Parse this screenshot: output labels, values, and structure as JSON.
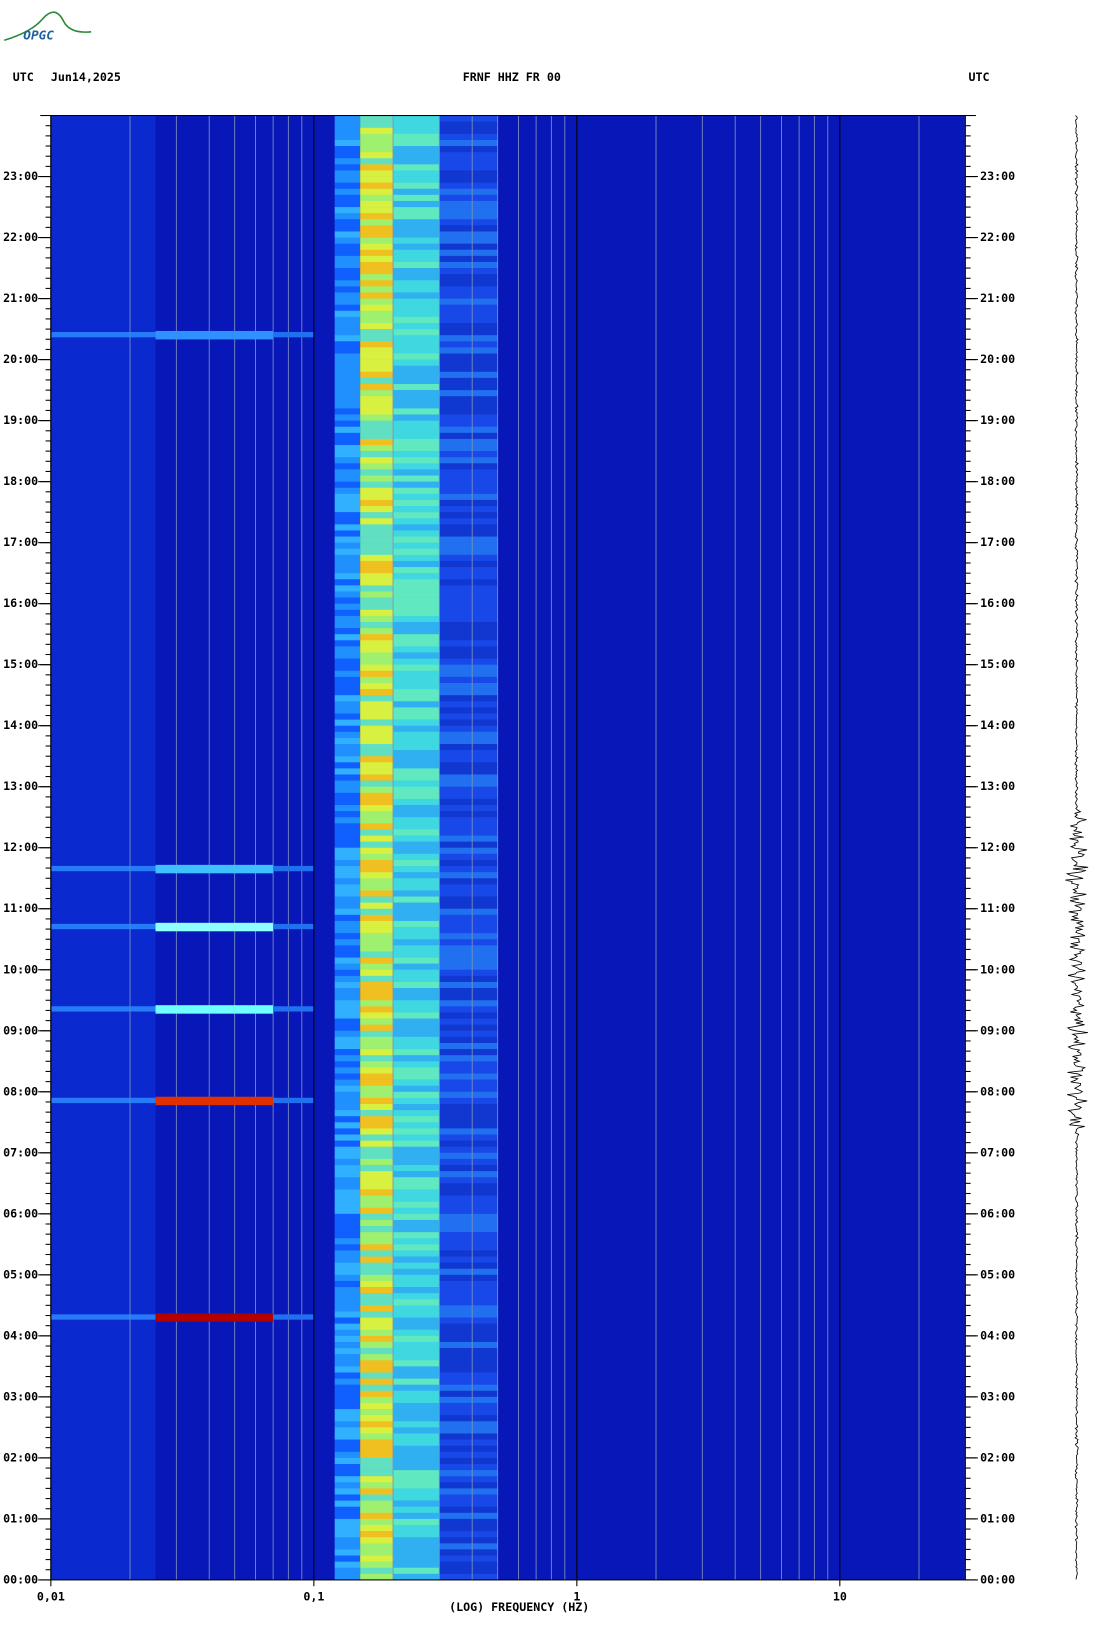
{
  "logo": "OPGC",
  "chart_data": {
    "type": "spectrogram",
    "header_left": "UTC",
    "date": "Jun14,2025",
    "title": "FRNF HHZ FR 00",
    "header_right": "UTC",
    "xlabel": "(LOG) FREQUENCY (HZ)",
    "xscale": "log",
    "xlim": [
      0.01,
      30
    ],
    "xticks": [
      {
        "value": 0.01,
        "label": "0,01"
      },
      {
        "value": 0.1,
        "label": "0,1"
      },
      1,
      10
    ],
    "ylim": [
      0,
      24
    ],
    "yticks": [
      {
        "value": 0,
        "label": "00:00"
      },
      {
        "value": 1,
        "label": "01:00"
      },
      {
        "value": 2,
        "label": "02:00"
      },
      {
        "value": 3,
        "label": "03:00"
      },
      {
        "value": 4,
        "label": "04:00"
      },
      {
        "value": 5,
        "label": "05:00"
      },
      {
        "value": 6,
        "label": "06:00"
      },
      {
        "value": 7,
        "label": "07:00"
      },
      {
        "value": 8,
        "label": "08:00"
      },
      {
        "value": 9,
        "label": "09:00"
      },
      {
        "value": 10,
        "label": "10:00"
      },
      {
        "value": 11,
        "label": "11:00"
      },
      {
        "value": 12,
        "label": "12:00"
      },
      {
        "value": 13,
        "label": "13:00"
      },
      {
        "value": 14,
        "label": "14:00"
      },
      {
        "value": 15,
        "label": "15:00"
      },
      {
        "value": 16,
        "label": "16:00"
      },
      {
        "value": 17,
        "label": "17:00"
      },
      {
        "value": 18,
        "label": "18:00"
      },
      {
        "value": 19,
        "label": "19:00"
      },
      {
        "value": 20,
        "label": "20:00"
      },
      {
        "value": 21,
        "label": "21:00"
      },
      {
        "value": 22,
        "label": "22:00"
      },
      {
        "value": 23,
        "label": "23:00"
      }
    ],
    "events": [
      {
        "hour": 4.3,
        "color": "#b00000"
      },
      {
        "hour": 7.85,
        "color": "#e03000"
      },
      {
        "hour": 9.35,
        "color": "#70ffff"
      },
      {
        "hour": 10.7,
        "color": "#90ffff"
      },
      {
        "hour": 11.65,
        "color": "#40c0ff"
      },
      {
        "hour": 20.4,
        "color": "#3090ff"
      }
    ]
  }
}
